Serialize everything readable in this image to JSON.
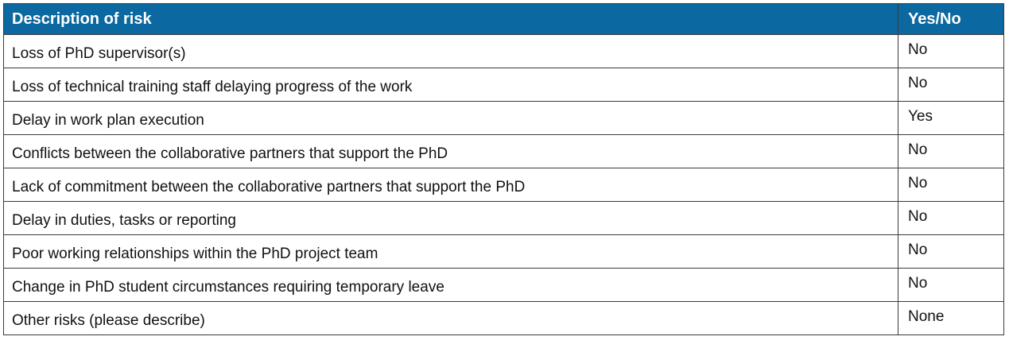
{
  "table": {
    "headers": {
      "description": "Description of risk",
      "answer": "Yes/No"
    },
    "rows": [
      {
        "description": "Loss of PhD supervisor(s)",
        "answer": "No"
      },
      {
        "description": "Loss of technical training staff delaying progress of the work",
        "answer": "No"
      },
      {
        "description": "Delay in work plan execution",
        "answer": "Yes"
      },
      {
        "description": "Conflicts between the collaborative partners that support the PhD",
        "answer": "No"
      },
      {
        "description": "Lack of commitment between the collaborative partners that support the PhD",
        "answer": "No"
      },
      {
        "description": "Delay in duties, tasks or reporting",
        "answer": "No"
      },
      {
        "description": "Poor working relationships within the PhD project team",
        "answer": "No"
      },
      {
        "description": "Change in PhD student circumstances requiring temporary leave",
        "answer": "No"
      },
      {
        "description": "Other risks (please describe)",
        "answer": "None"
      }
    ]
  },
  "colors": {
    "header_background": "#0b68a0",
    "header_text": "#ffffff",
    "border": "#3a3a3a"
  }
}
